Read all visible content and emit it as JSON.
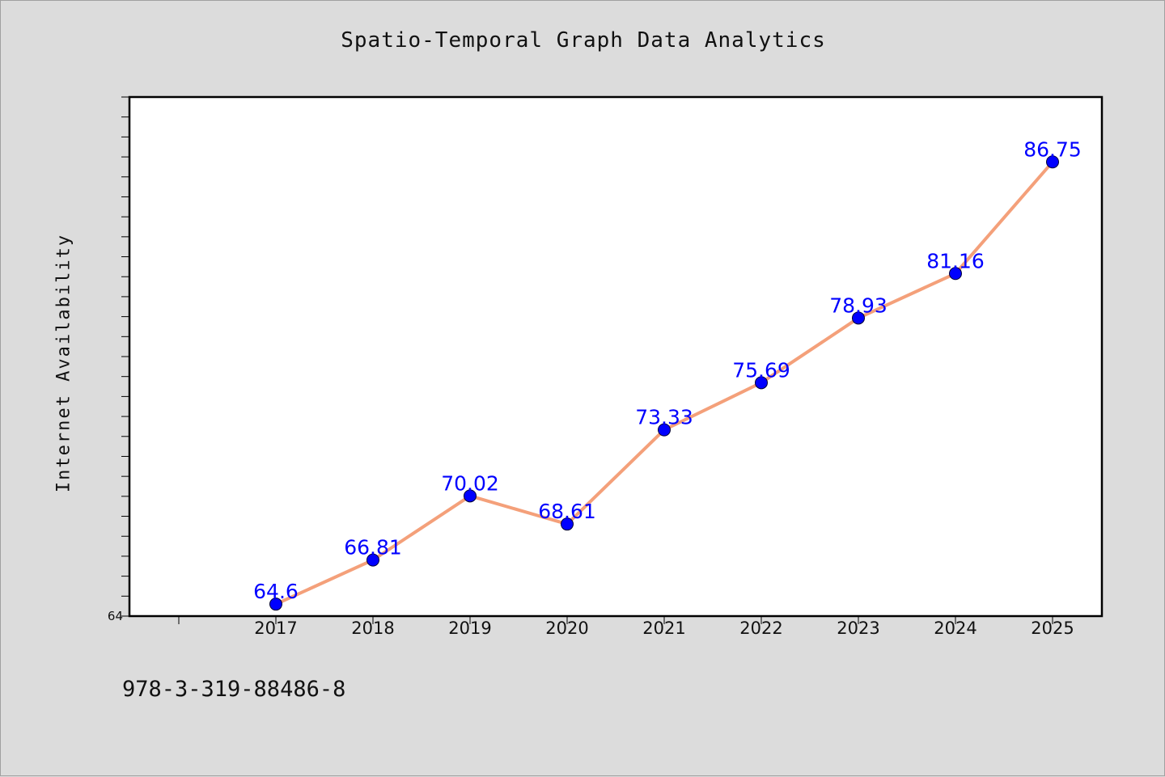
{
  "chart_data": {
    "type": "line",
    "title": "Spatio-Temporal Graph Data Analytics",
    "xlabel": "",
    "ylabel": "Internet Availability",
    "categories": [
      "2017",
      "2018",
      "2019",
      "2020",
      "2021",
      "2022",
      "2023",
      "2024",
      "2025"
    ],
    "series": [
      {
        "values": [
          64.6,
          66.81,
          70.02,
          68.61,
          73.33,
          75.69,
          78.93,
          81.16,
          86.75
        ],
        "labels": [
          "64.6",
          "66.81",
          "70.02",
          "68.61",
          "73.33",
          "75.69",
          "78.93",
          "81.16",
          "86.75"
        ]
      }
    ],
    "ylim": [
      64,
      90
    ],
    "y_tick_labels": [
      "64"
    ],
    "grid": false,
    "line_color": "#f4a07a",
    "marker_color": "#0000ff",
    "label_color": "#0000ff",
    "background_color": "#dcdcdc"
  },
  "footer": {
    "text": "978-3-319-88486-8"
  }
}
